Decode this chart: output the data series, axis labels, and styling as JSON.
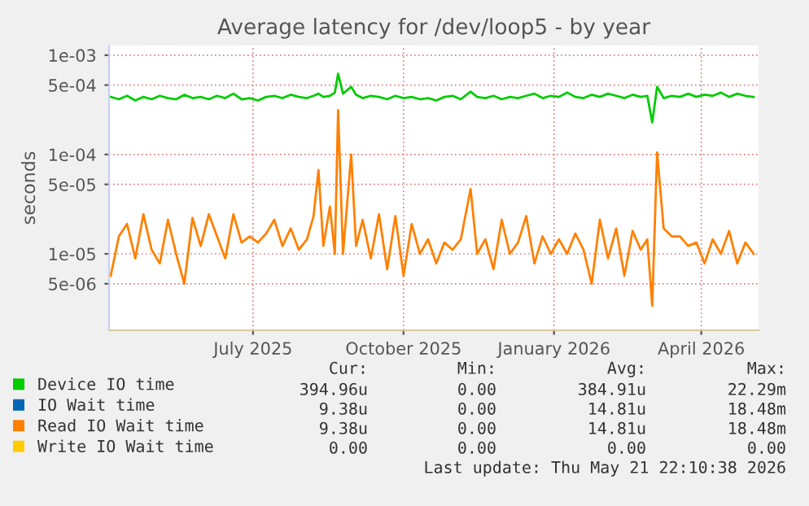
{
  "chart_data": {
    "type": "line",
    "title": "Average latency for /dev/loop5 - by year",
    "ylabel": "seconds",
    "log": "y",
    "x": [
      "2025-04-20",
      "2025-04-25",
      "2025-04-30",
      "2025-05-05",
      "2025-05-10",
      "2025-05-15",
      "2025-05-20",
      "2025-05-25",
      "2025-05-30",
      "2025-06-04",
      "2025-06-09",
      "2025-06-14",
      "2025-06-19",
      "2025-06-24",
      "2025-06-29",
      "2025-07-04",
      "2025-07-09",
      "2025-07-14",
      "2025-07-19",
      "2025-07-24",
      "2025-07-29",
      "2025-08-03",
      "2025-08-08",
      "2025-08-13",
      "2025-08-18",
      "2025-08-22",
      "2025-08-25",
      "2025-08-28",
      "2025-09-01",
      "2025-09-04",
      "2025-09-06",
      "2025-09-09",
      "2025-09-14",
      "2025-09-17",
      "2025-09-21",
      "2025-09-26",
      "2025-10-01",
      "2025-10-06",
      "2025-10-11",
      "2025-10-16",
      "2025-10-21",
      "2025-10-26",
      "2025-10-31",
      "2025-11-05",
      "2025-11-10",
      "2025-11-15",
      "2025-11-20",
      "2025-11-26",
      "2025-11-30",
      "2025-12-05",
      "2025-12-10",
      "2025-12-15",
      "2025-12-20",
      "2025-12-25",
      "2025-12-30",
      "2026-01-04",
      "2026-01-09",
      "2026-01-14",
      "2026-01-19",
      "2026-01-24",
      "2026-01-29",
      "2026-02-03",
      "2026-02-08",
      "2026-02-13",
      "2026-02-18",
      "2026-02-23",
      "2026-02-28",
      "2026-03-05",
      "2026-03-10",
      "2026-03-14",
      "2026-03-17",
      "2026-03-20",
      "2026-03-24",
      "2026-03-29",
      "2026-04-03",
      "2026-04-08",
      "2026-04-13",
      "2026-04-18",
      "2026-04-23",
      "2026-04-28",
      "2026-05-03",
      "2026-05-08",
      "2026-05-13",
      "2026-05-18"
    ],
    "series": [
      {
        "name": "Device IO time",
        "color": "#00cc00",
        "values": [
          0.00038,
          0.00036,
          0.00039,
          0.00035,
          0.00038,
          0.00036,
          0.00039,
          0.00037,
          0.00036,
          0.0004,
          0.00037,
          0.00038,
          0.00036,
          0.00039,
          0.00037,
          0.00041,
          0.00036,
          0.00037,
          0.00035,
          0.00038,
          0.00039,
          0.00037,
          0.0004,
          0.00038,
          0.00037,
          0.00039,
          0.00041,
          0.00038,
          0.00039,
          0.00042,
          0.00065,
          0.00041,
          0.00048,
          0.0004,
          0.00037,
          0.00039,
          0.00038,
          0.00036,
          0.00039,
          0.00037,
          0.00038,
          0.00036,
          0.00037,
          0.00035,
          0.00038,
          0.00039,
          0.00036,
          0.00043,
          0.00038,
          0.00037,
          0.00039,
          0.00036,
          0.00038,
          0.00037,
          0.00039,
          0.00041,
          0.00037,
          0.00039,
          0.00038,
          0.00042,
          0.00038,
          0.00037,
          0.0004,
          0.00038,
          0.00041,
          0.00039,
          0.00037,
          0.0004,
          0.00038,
          0.00039,
          0.00021,
          0.00048,
          0.00037,
          0.00039,
          0.00038,
          0.00041,
          0.00038,
          0.0004,
          0.00039,
          0.00042,
          0.00038,
          0.00041,
          0.00039,
          0.00038
        ]
      },
      {
        "name": "IO Wait time",
        "color": "#0066b3",
        "values": [
          null,
          null,
          null,
          null,
          null,
          null,
          null,
          null,
          null,
          null,
          null,
          null,
          null,
          null,
          null,
          null,
          null,
          null,
          null,
          null,
          null,
          null,
          null,
          null,
          null,
          null,
          null,
          null,
          null,
          null,
          null,
          null,
          null,
          null,
          null,
          null,
          null,
          null,
          null,
          null,
          null,
          null,
          null,
          null,
          null,
          null,
          null,
          null,
          null,
          null,
          null,
          null,
          null,
          null,
          null,
          null,
          null,
          null,
          null,
          null,
          null,
          null,
          null,
          null,
          null,
          null,
          null,
          null,
          null,
          null,
          null,
          null,
          null,
          null,
          null,
          null,
          null,
          null,
          null,
          null,
          null,
          null,
          null,
          null
        ]
      },
      {
        "name": "Read IO Wait time",
        "color": "#ff8000",
        "values": [
          6e-06,
          1.5e-05,
          2e-05,
          9e-06,
          2.5e-05,
          1.1e-05,
          8e-06,
          2.2e-05,
          1e-05,
          5e-06,
          2.3e-05,
          1.2e-05,
          2.5e-05,
          1.5e-05,
          9e-06,
          2.5e-05,
          1.3e-05,
          1.5e-05,
          1.3e-05,
          1.6e-05,
          2.2e-05,
          1.2e-05,
          1.8e-05,
          1.1e-05,
          1.4e-05,
          2.4e-05,
          7e-05,
          1.2e-05,
          3e-05,
          1e-05,
          0.00028,
          1e-05,
          0.0001,
          1.2e-05,
          2.2e-05,
          9e-06,
          2.5e-05,
          7e-06,
          2.4e-05,
          6e-06,
          2e-05,
          1e-05,
          1.4e-05,
          8e-06,
          1.3e-05,
          1.1e-05,
          1.4e-05,
          4.5e-05,
          1e-05,
          1.4e-05,
          7e-06,
          2.2e-05,
          1e-05,
          1.3e-05,
          2.4e-05,
          8e-06,
          1.5e-05,
          1e-05,
          1.4e-05,
          1e-05,
          1.6e-05,
          1.1e-05,
          5e-06,
          2.2e-05,
          9e-06,
          1.8e-05,
          6e-06,
          1.7e-05,
          1.1e-05,
          1.4e-05,
          3e-06,
          0.000105,
          1.8e-05,
          1.5e-05,
          1.5e-05,
          1.2e-05,
          1.3e-05,
          8e-06,
          1.4e-05,
          1e-05,
          1.7e-05,
          8e-06,
          1.3e-05,
          1e-05
        ]
      },
      {
        "name": "Write IO Wait time",
        "color": "#ffcc00",
        "values": [
          null,
          null,
          null,
          null,
          null,
          null,
          null,
          null,
          null,
          null,
          null,
          null,
          null,
          null,
          null,
          null,
          null,
          null,
          null,
          null,
          null,
          null,
          null,
          null,
          null,
          null,
          null,
          null,
          null,
          null,
          null,
          null,
          null,
          null,
          null,
          null,
          null,
          null,
          null,
          null,
          null,
          null,
          null,
          null,
          null,
          null,
          null,
          null,
          null,
          null,
          null,
          null,
          null,
          null,
          null,
          null,
          null,
          null,
          null,
          null,
          null,
          null,
          null,
          null,
          null,
          null,
          null,
          null,
          null,
          null,
          null,
          null,
          null,
          null,
          null,
          null,
          null,
          null,
          null,
          null,
          null,
          null,
          null,
          null
        ]
      }
    ],
    "xlim": [
      "2025-04-19",
      "2026-05-21"
    ],
    "xticks": [
      {
        "value": "2025-07-16",
        "label": "July 2025"
      },
      {
        "value": "2025-10-16",
        "label": "October 2025"
      },
      {
        "value": "2026-01-16",
        "label": "January 2026"
      },
      {
        "value": "2026-04-16",
        "label": "April 2026"
      }
    ],
    "ylim": [
      1.7e-06,
      0.00125
    ],
    "yticks": [
      {
        "value": 0.001,
        "label": "1e-03"
      },
      {
        "value": 0.0005,
        "label": "5e-04"
      },
      {
        "value": 0.0001,
        "label": "1e-04"
      },
      {
        "value": 5e-05,
        "label": "5e-05"
      },
      {
        "value": 1e-05,
        "label": "1e-05"
      },
      {
        "value": 5e-06,
        "label": "5e-06"
      }
    ],
    "grid": true,
    "legend": "bottom",
    "line_style": "solid",
    "marker": "none",
    "annotations": [
      "Cur:",
      "Min:",
      "Avg:",
      "Max:",
      "394.96u",
      "0.00",
      "384.91u",
      "22.29m",
      "9.38u",
      "0.00",
      "14.81u",
      "18.48m",
      "9.38u",
      "0.00",
      "14.81u",
      "18.48m",
      "0.00",
      "0.00",
      "0.00",
      "0.00",
      "Last update: Thu May 21 22:10:38 2026"
    ]
  }
}
